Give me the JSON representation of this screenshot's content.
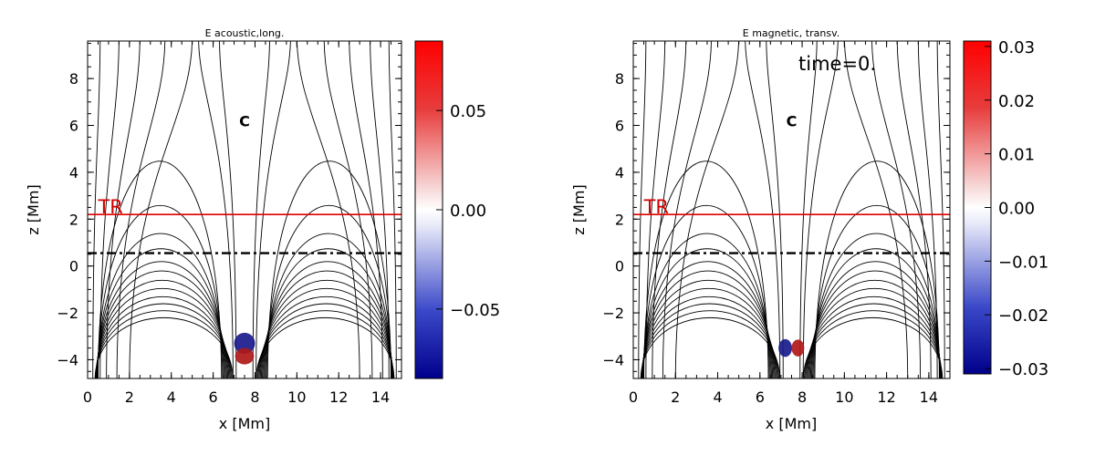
{
  "chart_data": [
    {
      "type": "contour",
      "title": "E acoustic,long.",
      "xlabel": "x [Mm]",
      "ylabel": "z [Mm]",
      "xlim": [
        0,
        15
      ],
      "ylim": [
        -4.8,
        9.6
      ],
      "xticks": [
        "0",
        "2",
        "4",
        "6",
        "8",
        "10",
        "12",
        "14"
      ],
      "yticks": [
        "-4",
        "-2",
        "0",
        "2",
        "4",
        "6",
        "8"
      ],
      "annotations": {
        "tr_label": "TR",
        "null_label": "C",
        "time_label": ""
      },
      "tr_height": 2.2,
      "dashed_line_height": 0.55,
      "null_point": [
        7.5,
        6.2
      ],
      "blobs": [
        {
          "x": 7.5,
          "z": -3.3,
          "rx": 0.5,
          "rz": 0.45,
          "color": "#1a1a8c"
        },
        {
          "x": 7.5,
          "z": -3.85,
          "rx": 0.45,
          "rz": 0.35,
          "color": "#b01818"
        }
      ],
      "colorbar": {
        "min": -0.085,
        "max": 0.085,
        "ticks": [
          0.05,
          0.0,
          -0.05
        ],
        "tick_labels": [
          "0.05",
          "0.00",
          "−0.05"
        ]
      }
    },
    {
      "type": "contour",
      "title": "E magnetic, transv.",
      "xlabel": "x [Mm]",
      "ylabel": "z [Mm]",
      "xlim": [
        0,
        15
      ],
      "ylim": [
        -4.8,
        9.6
      ],
      "xticks": [
        "0",
        "2",
        "4",
        "6",
        "8",
        "10",
        "12",
        "14"
      ],
      "yticks": [
        "-4",
        "-2",
        "0",
        "2",
        "4",
        "6",
        "8"
      ],
      "annotations": {
        "tr_label": "TR",
        "null_label": "C",
        "time_label": "time=0."
      },
      "tr_height": 2.2,
      "dashed_line_height": 0.55,
      "null_point": [
        7.5,
        6.2
      ],
      "blobs": [
        {
          "x": 7.2,
          "z": -3.5,
          "rx": 0.32,
          "rz": 0.38,
          "color": "#1a1a8c"
        },
        {
          "x": 7.8,
          "z": -3.5,
          "rx": 0.3,
          "rz": 0.36,
          "color": "#b01818"
        }
      ],
      "colorbar": {
        "min": -0.031,
        "max": 0.031,
        "ticks": [
          0.03,
          0.02,
          0.01,
          0.0,
          -0.01,
          -0.02,
          -0.03
        ],
        "tick_labels": [
          "0.03",
          "0.02",
          "0.01",
          "0.00",
          "−0.01",
          "−0.02",
          "−0.03"
        ]
      }
    }
  ]
}
